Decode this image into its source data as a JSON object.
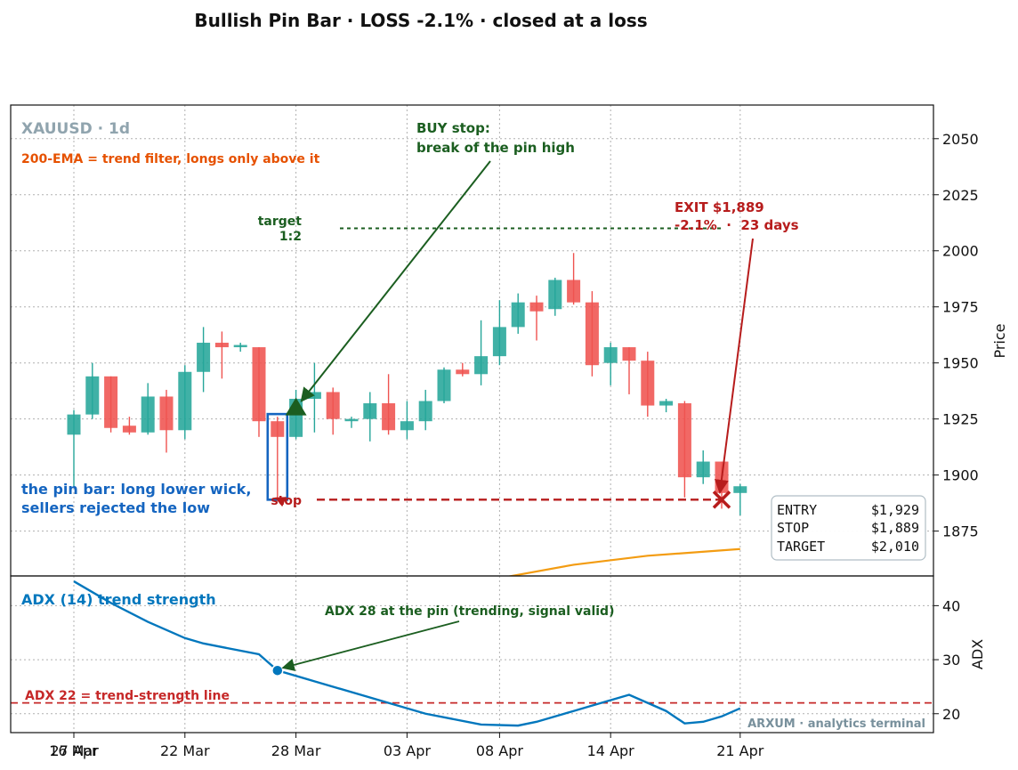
{
  "title": "Bullish Pin Bar · LOSS -2.1% · closed at a loss",
  "chart_data": [
    {
      "type": "candlestick",
      "symbol_label": "XAUUSD · 1d",
      "ylabel": "Price",
      "ylim": [
        1855,
        2065
      ],
      "yticks": [
        1875,
        1900,
        1925,
        1950,
        1975,
        2000,
        2025,
        2050
      ],
      "x_ticks": [
        "16 Mar",
        "22 Mar",
        "28 Mar",
        "03 Apr",
        "08 Apr",
        "14 Apr",
        "21 Apr",
        "27 Apr"
      ],
      "grid": true,
      "candles": [
        {
          "date": "16 Mar",
          "o": 1918,
          "h": 1929,
          "l": 1895,
          "c": 1927
        },
        {
          "date": "17 Mar",
          "o": 1927,
          "h": 1950,
          "l": 1925,
          "c": 1944
        },
        {
          "date": "18 Mar",
          "o": 1944,
          "h": 1944,
          "l": 1919,
          "c": 1921
        },
        {
          "date": "19 Mar",
          "o": 1922,
          "h": 1926,
          "l": 1918,
          "c": 1919
        },
        {
          "date": "20 Mar",
          "o": 1919,
          "h": 1941,
          "l": 1918,
          "c": 1935
        },
        {
          "date": "21 Mar",
          "o": 1935,
          "h": 1938,
          "l": 1910,
          "c": 1920
        },
        {
          "date": "22 Mar",
          "o": 1920,
          "h": 1949,
          "l": 1916,
          "c": 1946
        },
        {
          "date": "23 Mar",
          "o": 1946,
          "h": 1966,
          "l": 1937,
          "c": 1959
        },
        {
          "date": "24 Mar",
          "o": 1959,
          "h": 1964,
          "l": 1943,
          "c": 1957
        },
        {
          "date": "25 Mar",
          "o": 1957,
          "h": 1959,
          "l": 1955,
          "c": 1958
        },
        {
          "date": "26 Mar",
          "o": 1957,
          "h": 1957,
          "l": 1917,
          "c": 1924
        },
        {
          "date": "27 Mar",
          "o": 1924,
          "h": 1926,
          "l": 1889,
          "c": 1917
        },
        {
          "date": "28 Mar",
          "o": 1917,
          "h": 1938,
          "l": 1916,
          "c": 1934
        },
        {
          "date": "29 Mar",
          "o": 1934,
          "h": 1950,
          "l": 1919,
          "c": 1937
        },
        {
          "date": "30 Mar",
          "o": 1937,
          "h": 1939,
          "l": 1918,
          "c": 1925
        },
        {
          "date": "31 Mar",
          "o": 1924,
          "h": 1926,
          "l": 1921,
          "c": 1925
        },
        {
          "date": "01 Apr",
          "o": 1925,
          "h": 1937,
          "l": 1915,
          "c": 1932
        },
        {
          "date": "02 Apr",
          "o": 1932,
          "h": 1945,
          "l": 1918,
          "c": 1920
        },
        {
          "date": "03 Apr",
          "o": 1920,
          "h": 1933,
          "l": 1916,
          "c": 1924
        },
        {
          "date": "04 Apr",
          "o": 1924,
          "h": 1938,
          "l": 1920,
          "c": 1933
        },
        {
          "date": "05 Apr",
          "o": 1933,
          "h": 1948,
          "l": 1932,
          "c": 1947
        },
        {
          "date": "06 Apr",
          "o": 1947,
          "h": 1950,
          "l": 1944,
          "c": 1945
        },
        {
          "date": "07 Apr",
          "o": 1945,
          "h": 1969,
          "l": 1940,
          "c": 1953
        },
        {
          "date": "08 Apr",
          "o": 1953,
          "h": 1978,
          "l": 1949,
          "c": 1966
        },
        {
          "date": "09 Apr",
          "o": 1966,
          "h": 1981,
          "l": 1963,
          "c": 1977
        },
        {
          "date": "10 Apr",
          "o": 1977,
          "h": 1980,
          "l": 1960,
          "c": 1973
        },
        {
          "date": "11 Apr",
          "o": 1974,
          "h": 1988,
          "l": 1971,
          "c": 1987
        },
        {
          "date": "12 Apr",
          "o": 1987,
          "h": 1999,
          "l": 1976,
          "c": 1977
        },
        {
          "date": "13 Apr",
          "o": 1977,
          "h": 1982,
          "l": 1944,
          "c": 1949
        },
        {
          "date": "14 Apr",
          "o": 1950,
          "h": 1959,
          "l": 1940,
          "c": 1957
        },
        {
          "date": "15 Apr",
          "o": 1957,
          "h": 1957,
          "l": 1936,
          "c": 1951
        },
        {
          "date": "16 Apr",
          "o": 1951,
          "h": 1955,
          "l": 1926,
          "c": 1931
        },
        {
          "date": "17 Apr",
          "o": 1931,
          "h": 1934,
          "l": 1928,
          "c": 1933
        },
        {
          "date": "18 Apr",
          "o": 1932,
          "h": 1933,
          "l": 1890,
          "c": 1899
        },
        {
          "date": "19 Apr",
          "o": 1899,
          "h": 1911,
          "l": 1896,
          "c": 1906
        },
        {
          "date": "20 Apr",
          "o": 1906,
          "h": 1906,
          "l": 1885,
          "c": 1892
        },
        {
          "date": "21 Apr",
          "o": 1892,
          "h": 1896,
          "l": 1882,
          "c": 1895
        }
      ],
      "ema200": [
        {
          "date": "08 Apr",
          "value": 1854
        },
        {
          "date": "12 Apr",
          "value": 1860
        },
        {
          "date": "16 Apr",
          "value": 1864
        },
        {
          "date": "21 Apr",
          "value": 1867
        }
      ],
      "levels": {
        "entry": 1929,
        "stop": 1889,
        "target": 2010
      },
      "pin_bar_date": "27 Mar",
      "exit_date": "20 Apr",
      "annotations": {
        "ema_note": "200-EMA = trend filter, longs only above it",
        "buy_stop_line1": "BUY stop:",
        "buy_stop_line2": "break of the pin high",
        "target_line1": "target",
        "target_line2": "1:2",
        "exit_line1": "EXIT $1,889",
        "exit_line2": "-2.1%  ·  23 days",
        "pin_line1": "the pin bar: long lower wick,",
        "pin_line2": "sellers rejected the low",
        "stop_label": "stop"
      },
      "info_box": [
        {
          "label": "ENTRY",
          "value": "$1,929"
        },
        {
          "label": "STOP",
          "value": "$1,889"
        },
        {
          "label": "TARGET",
          "value": "$2,010"
        }
      ]
    },
    {
      "type": "line",
      "name": "ADX (14) trend strength",
      "ylabel": "ADX",
      "ylim": [
        16.5,
        45.5
      ],
      "yticks": [
        20,
        30,
        40
      ],
      "threshold": 22,
      "threshold_label": "ADX 22 = trend-strength line",
      "pin_value": 28,
      "pin_note": "ADX 28 at the pin (trending, signal valid)",
      "watermark": "ARXUM · analytics terminal",
      "points": [
        {
          "date": "16 Mar",
          "value": 44.5
        },
        {
          "date": "18 Mar",
          "value": 40.5
        },
        {
          "date": "20 Mar",
          "value": 37.0
        },
        {
          "date": "22 Mar",
          "value": 34.0
        },
        {
          "date": "23 Mar",
          "value": 33.0
        },
        {
          "date": "26 Mar",
          "value": 31.0
        },
        {
          "date": "27 Mar",
          "value": 28.0
        },
        {
          "date": "29 Mar",
          "value": 26.0
        },
        {
          "date": "02 Apr",
          "value": 22.0
        },
        {
          "date": "04 Apr",
          "value": 20.0
        },
        {
          "date": "07 Apr",
          "value": 18.0
        },
        {
          "date": "09 Apr",
          "value": 17.8
        },
        {
          "date": "10 Apr",
          "value": 18.5
        },
        {
          "date": "12 Apr",
          "value": 20.5
        },
        {
          "date": "13 Apr",
          "value": 21.5
        },
        {
          "date": "15 Apr",
          "value": 23.5
        },
        {
          "date": "16 Apr",
          "value": 22.0
        },
        {
          "date": "17 Apr",
          "value": 20.5
        },
        {
          "date": "18 Apr",
          "value": 18.2
        },
        {
          "date": "19 Apr",
          "value": 18.5
        },
        {
          "date": "20 Apr",
          "value": 19.5
        },
        {
          "date": "21 Apr",
          "value": 21.0
        }
      ]
    }
  ],
  "colors": {
    "up": "#26a69a",
    "down": "#ef5350",
    "ema": "#f39c12",
    "buy": "#1b5e20",
    "exit": "#b71c1c",
    "pin": "#1565c0",
    "adx": "#0277bd",
    "ema_note": "#e65100",
    "symbol": "#90a4ae"
  }
}
